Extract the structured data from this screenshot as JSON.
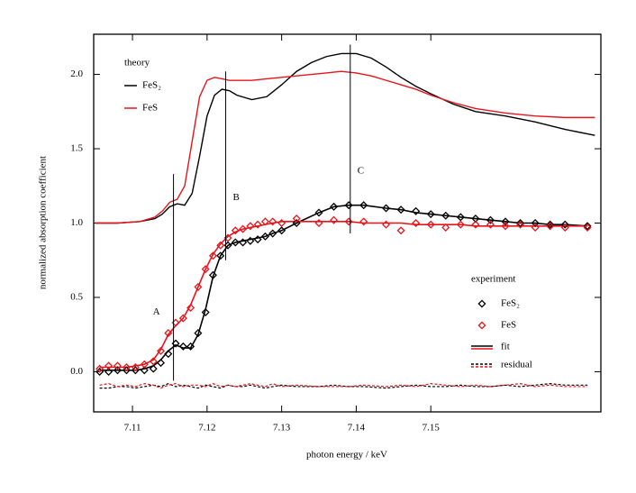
{
  "chart_data": {
    "type": "line",
    "xlabel": "photon energy / keV",
    "ylabel": "normalized absorption coefficient",
    "xlim": [
      7.1048,
      7.1728
    ],
    "ylim": [
      -0.27,
      2.27
    ],
    "xticks": [
      7.11,
      7.12,
      7.13,
      7.14,
      7.15
    ],
    "yticks": [
      {
        "value": 0,
        "label": "0.0"
      },
      0.5,
      {
        "value": 1,
        "label": "1.0"
      },
      1.5,
      {
        "value": 2,
        "label": "2.0"
      }
    ],
    "theory": {
      "label": "theory",
      "x": [
        7.105,
        7.108,
        7.111,
        7.113,
        7.114,
        7.115,
        7.116,
        7.117,
        7.118,
        7.119,
        7.12,
        7.121,
        7.122,
        7.123,
        7.124,
        7.126,
        7.128,
        7.13,
        7.132,
        7.134,
        7.136,
        7.138,
        7.14,
        7.142,
        7.144,
        7.146,
        7.148,
        7.15,
        7.153,
        7.156,
        7.16,
        7.164,
        7.168,
        7.172
      ],
      "series": [
        {
          "name": "FeS₂",
          "color": "#000000",
          "values": [
            1.0,
            1.0,
            1.01,
            1.03,
            1.06,
            1.11,
            1.13,
            1.12,
            1.2,
            1.45,
            1.72,
            1.86,
            1.9,
            1.89,
            1.86,
            1.83,
            1.85,
            1.93,
            2.02,
            2.08,
            2.12,
            2.14,
            2.14,
            2.11,
            2.05,
            1.98,
            1.92,
            1.87,
            1.8,
            1.75,
            1.72,
            1.68,
            1.63,
            1.59
          ]
        },
        {
          "name": "FeS",
          "color": "#e8141b",
          "values": [
            1.0,
            1.0,
            1.01,
            1.04,
            1.08,
            1.14,
            1.16,
            1.25,
            1.55,
            1.85,
            1.96,
            1.98,
            1.97,
            1.96,
            1.96,
            1.96,
            1.97,
            1.98,
            1.99,
            2.0,
            2.01,
            2.02,
            2.01,
            1.99,
            1.96,
            1.93,
            1.9,
            1.86,
            1.81,
            1.77,
            1.74,
            1.72,
            1.71,
            1.71
          ]
        }
      ]
    },
    "experiment": {
      "label": "experiment",
      "fit_label": "fit",
      "residual_label": "residual",
      "x": [
        7.1056,
        7.1068,
        7.108,
        7.1092,
        7.1104,
        7.1116,
        7.1128,
        7.1138,
        7.1148,
        7.1158,
        7.1168,
        7.1178,
        7.1188,
        7.1198,
        7.1208,
        7.1218,
        7.1228,
        7.1238,
        7.1248,
        7.1258,
        7.1268,
        7.1278,
        7.1288,
        7.13,
        7.132,
        7.135,
        7.137,
        7.139,
        7.141,
        7.144,
        7.146,
        7.148,
        7.15,
        7.152,
        7.154,
        7.156,
        7.158,
        7.16,
        7.162,
        7.164,
        7.166,
        7.168,
        7.171
      ],
      "series": [
        {
          "name": "FeS₂",
          "color": "#000000",
          "values": [
            0.0,
            0.0,
            0.01,
            0.01,
            0.01,
            0.01,
            0.02,
            0.06,
            0.12,
            0.19,
            0.17,
            0.17,
            0.26,
            0.4,
            0.65,
            0.78,
            0.85,
            0.87,
            0.87,
            0.88,
            0.89,
            0.91,
            0.93,
            0.95,
            1.0,
            1.07,
            1.11,
            1.12,
            1.12,
            1.1,
            1.09,
            1.08,
            1.06,
            1.05,
            1.04,
            1.03,
            1.02,
            1.01,
            1.0,
            1.0,
            0.99,
            0.99,
            0.98
          ],
          "fit": [
            0.01,
            0.01,
            0.01,
            0.01,
            0.01,
            0.02,
            0.04,
            0.08,
            0.14,
            0.18,
            0.16,
            0.16,
            0.25,
            0.42,
            0.64,
            0.78,
            0.85,
            0.87,
            0.88,
            0.89,
            0.9,
            0.91,
            0.93,
            0.95,
            1.0,
            1.07,
            1.11,
            1.12,
            1.12,
            1.1,
            1.09,
            1.07,
            1.06,
            1.05,
            1.04,
            1.03,
            1.02,
            1.01,
            1.0,
            1.0,
            0.99,
            0.99,
            0.98
          ],
          "residual": [
            -0.11,
            -0.11,
            -0.1,
            -0.1,
            -0.11,
            -0.1,
            -0.09,
            -0.1,
            -0.08,
            -0.1,
            -0.09,
            -0.1,
            -0.11,
            -0.09,
            -0.1,
            -0.11,
            -0.09,
            -0.1,
            -0.1,
            -0.09,
            -0.1,
            -0.11,
            -0.1,
            -0.09,
            -0.1,
            -0.1,
            -0.09,
            -0.1,
            -0.1,
            -0.11,
            -0.1,
            -0.09,
            -0.1,
            -0.1,
            -0.09,
            -0.1,
            -0.1,
            -0.09,
            -0.1,
            -0.09,
            -0.08,
            -0.09,
            -0.09
          ]
        },
        {
          "name": "FeS",
          "color": "#e8141b",
          "values": [
            0.02,
            0.04,
            0.04,
            0.03,
            0.03,
            0.05,
            0.07,
            0.14,
            0.26,
            0.33,
            0.36,
            0.43,
            0.57,
            0.69,
            0.78,
            0.85,
            0.9,
            0.95,
            0.96,
            0.98,
            0.99,
            1.01,
            1.01,
            1.0,
            1.03,
            1.0,
            1.02,
            1.01,
            1.01,
            0.99,
            0.95,
            1.0,
            0.99,
            0.97,
            0.99,
            0.99,
            0.99,
            0.98,
            0.99,
            0.97,
            0.98,
            0.97,
            0.97
          ],
          "fit": [
            0.03,
            0.03,
            0.03,
            0.03,
            0.04,
            0.05,
            0.08,
            0.15,
            0.25,
            0.31,
            0.36,
            0.45,
            0.57,
            0.69,
            0.79,
            0.86,
            0.91,
            0.94,
            0.96,
            0.97,
            0.98,
            0.99,
            1.0,
            1.01,
            1.01,
            1.01,
            1.01,
            1.01,
            1.0,
            1.0,
            1.0,
            0.99,
            0.99,
            0.99,
            0.99,
            0.98,
            0.98,
            0.98,
            0.98,
            0.98,
            0.98,
            0.98,
            0.98
          ],
          "residual": [
            -0.09,
            -0.08,
            -0.1,
            -0.09,
            -0.1,
            -0.08,
            -0.09,
            -0.11,
            -0.09,
            -0.08,
            -0.1,
            -0.09,
            -0.09,
            -0.1,
            -0.08,
            -0.1,
            -0.09,
            -0.1,
            -0.09,
            -0.08,
            -0.09,
            -0.1,
            -0.08,
            -0.1,
            -0.09,
            -0.1,
            -0.1,
            -0.1,
            -0.09,
            -0.1,
            -0.09,
            -0.1,
            -0.08,
            -0.09,
            -0.1,
            -0.09,
            -0.1,
            -0.09,
            -0.08,
            -0.1,
            -0.09,
            -0.1,
            -0.1
          ]
        }
      ]
    },
    "annotations": [
      {
        "label": "A",
        "x": 7.1155,
        "y": [
          -0.06,
          1.33
        ]
      },
      {
        "label": "B",
        "x": 7.1225,
        "y": [
          0.75,
          2.02
        ]
      },
      {
        "label": "C",
        "x": 7.1392,
        "y": [
          0.93,
          2.2
        ]
      }
    ]
  }
}
